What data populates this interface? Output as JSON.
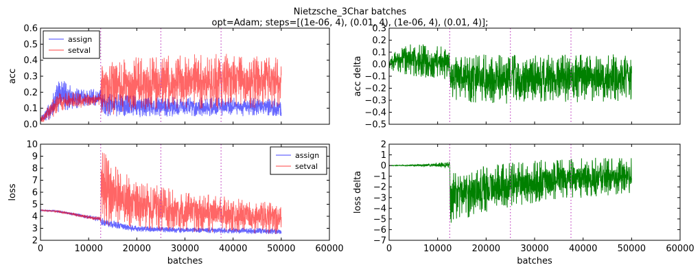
{
  "figure": {
    "title_line1": "Nietzsche_3Char batches",
    "title_line2": "opt=Adam; steps=[(1e-06, 4), (0.01, 4), (1e-06, 4), (0.01, 4)];"
  },
  "colors": {
    "assign": "#0000ff",
    "setval": "#ff0000",
    "delta": "#008000",
    "vline": "#bf40bf"
  },
  "chart_data": [
    {
      "id": "acc",
      "type": "line",
      "xlabel": "",
      "ylabel": "acc",
      "xlim": [
        0,
        60000
      ],
      "ylim": [
        0.0,
        0.6
      ],
      "xticks": [],
      "yticks": [
        "0.0",
        "0.1",
        "0.2",
        "0.3",
        "0.4",
        "0.5",
        "0.6"
      ],
      "vlines": [
        12500,
        25000,
        37500
      ],
      "legend": {
        "position": "top-left",
        "entries": [
          "assign",
          "setval"
        ]
      },
      "series": [
        {
          "name": "assign",
          "color": "#0000ff",
          "alpha": 0.6,
          "envelope": [
            [
              0,
              0.0,
              0.05
            ],
            [
              2000,
              0.03,
              0.15
            ],
            [
              4000,
              0.08,
              0.3
            ],
            [
              6000,
              0.09,
              0.25
            ],
            [
              8000,
              0.1,
              0.24
            ],
            [
              10000,
              0.11,
              0.22
            ],
            [
              12500,
              0.12,
              0.22
            ],
            [
              12600,
              0.04,
              0.2
            ],
            [
              20000,
              0.04,
              0.18
            ],
            [
              30000,
              0.05,
              0.17
            ],
            [
              40000,
              0.05,
              0.17
            ],
            [
              50000,
              0.05,
              0.16
            ]
          ]
        },
        {
          "name": "setval",
          "color": "#ff0000",
          "alpha": 0.6,
          "envelope": [
            [
              0,
              0.0,
              0.04
            ],
            [
              2000,
              0.03,
              0.14
            ],
            [
              4000,
              0.08,
              0.2
            ],
            [
              6000,
              0.1,
              0.2
            ],
            [
              8000,
              0.1,
              0.2
            ],
            [
              10000,
              0.11,
              0.19
            ],
            [
              12500,
              0.12,
              0.19
            ],
            [
              12600,
              0.05,
              0.38
            ],
            [
              20000,
              0.08,
              0.42
            ],
            [
              30000,
              0.09,
              0.44
            ],
            [
              40000,
              0.1,
              0.44
            ],
            [
              50000,
              0.1,
              0.42
            ]
          ]
        }
      ]
    },
    {
      "id": "acc_delta",
      "type": "line",
      "xlabel": "",
      "ylabel": "acc delta",
      "xlim": [
        0,
        60000
      ],
      "ylim": [
        -0.5,
        0.3
      ],
      "xticks": [],
      "yticks": [
        "−0.5",
        "−0.4",
        "−0.3",
        "−0.2",
        "−0.1",
        "0.0",
        "0.1",
        "0.2",
        "0.3"
      ],
      "vlines": [
        12500,
        25000,
        37500
      ],
      "series": [
        {
          "name": "",
          "color": "#008000",
          "alpha": 1.0,
          "envelope": [
            [
              0,
              -0.05,
              0.05
            ],
            [
              2000,
              -0.08,
              0.15
            ],
            [
              5000,
              -0.1,
              0.18
            ],
            [
              8000,
              -0.12,
              0.16
            ],
            [
              12500,
              -0.12,
              0.14
            ],
            [
              12600,
              -0.3,
              0.1
            ],
            [
              20000,
              -0.33,
              0.08
            ],
            [
              30000,
              -0.33,
              0.08
            ],
            [
              40000,
              -0.32,
              0.08
            ],
            [
              50000,
              -0.3,
              0.1
            ]
          ]
        }
      ]
    },
    {
      "id": "loss",
      "type": "line",
      "xlabel": "batches",
      "ylabel": "loss",
      "xlim": [
        0,
        60000
      ],
      "ylim": [
        2,
        10
      ],
      "xticks": [
        "0",
        "10000",
        "20000",
        "30000",
        "40000",
        "50000",
        "60000"
      ],
      "yticks": [
        "2",
        "3",
        "4",
        "5",
        "6",
        "7",
        "8",
        "9",
        "10"
      ],
      "vlines": [
        12500,
        25000,
        37500
      ],
      "legend": {
        "position": "top-right",
        "entries": [
          "assign",
          "setval"
        ]
      },
      "series": [
        {
          "name": "assign",
          "color": "#0000ff",
          "alpha": 0.6,
          "envelope": [
            [
              0,
              4.45,
              4.55
            ],
            [
              3000,
              4.35,
              4.5
            ],
            [
              6000,
              4.15,
              4.35
            ],
            [
              9000,
              3.85,
              4.15
            ],
            [
              12500,
              3.55,
              3.95
            ],
            [
              12600,
              3.2,
              3.9
            ],
            [
              20000,
              2.7,
              3.2
            ],
            [
              30000,
              2.6,
              3.1
            ],
            [
              40000,
              2.55,
              3.05
            ],
            [
              50000,
              2.5,
              3.0
            ]
          ]
        },
        {
          "name": "setval",
          "color": "#ff0000",
          "alpha": 0.6,
          "envelope": [
            [
              0,
              4.45,
              4.55
            ],
            [
              3000,
              4.35,
              4.5
            ],
            [
              6000,
              4.15,
              4.35
            ],
            [
              9000,
              3.85,
              4.15
            ],
            [
              12500,
              3.55,
              3.95
            ],
            [
              12600,
              3.2,
              9.8
            ],
            [
              15000,
              3.2,
              8.4
            ],
            [
              20000,
              3.0,
              7.0
            ],
            [
              25000,
              2.8,
              6.5
            ],
            [
              30000,
              2.7,
              6.0
            ],
            [
              40000,
              2.6,
              5.6
            ],
            [
              50000,
              2.5,
              5.2
            ]
          ]
        }
      ]
    },
    {
      "id": "loss_delta",
      "type": "line",
      "xlabel": "batches",
      "ylabel": "loss delta",
      "xlim": [
        0,
        60000
      ],
      "ylim": [
        -7,
        2
      ],
      "xticks": [
        "0",
        "10000",
        "20000",
        "30000",
        "40000",
        "50000",
        "60000"
      ],
      "yticks": [
        "−7",
        "−6",
        "−5",
        "−4",
        "−3",
        "−2",
        "−1",
        "0",
        "1",
        "2"
      ],
      "vlines": [
        12500,
        25000,
        37500
      ],
      "series": [
        {
          "name": "",
          "color": "#008000",
          "alpha": 1.0,
          "envelope": [
            [
              0,
              -0.02,
              0.02
            ],
            [
              5000,
              -0.05,
              0.08
            ],
            [
              10000,
              -0.15,
              0.25
            ],
            [
              12500,
              -0.25,
              0.35
            ],
            [
              12600,
              -6.0,
              -0.5
            ],
            [
              15000,
              -5.0,
              -0.3
            ],
            [
              20000,
              -4.5,
              0.0
            ],
            [
              30000,
              -3.5,
              0.5
            ],
            [
              40000,
              -3.0,
              0.7
            ],
            [
              50000,
              -2.6,
              0.8
            ]
          ]
        }
      ]
    }
  ]
}
